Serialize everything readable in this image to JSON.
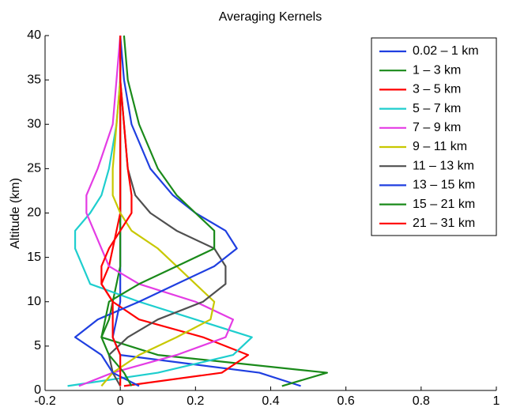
{
  "chart_data": {
    "type": "line",
    "title": "Averaging Kernels",
    "ylabel": "Altitude (km)",
    "y": [
      0.5,
      2,
      4,
      6,
      8,
      10,
      12,
      14,
      16,
      18,
      20,
      22,
      25,
      30,
      35,
      40
    ],
    "series": [
      {
        "name": "0.02 – 1 km",
        "color": "#1f3fe0",
        "values": [
          0.48,
          0.37,
          0.0,
          -0.02,
          -0.01,
          0,
          0,
          0,
          0,
          0,
          0,
          0,
          0,
          0,
          0,
          0
        ]
      },
      {
        "name": "1 – 3 km",
        "color": "#1a8a1a",
        "values": [
          0.43,
          0.55,
          0.1,
          -0.05,
          -0.03,
          -0.02,
          -0.01,
          0,
          0,
          0,
          0,
          0,
          0,
          0,
          0,
          0
        ]
      },
      {
        "name": "3 – 5 km",
        "color": "#ff0000",
        "values": [
          0.01,
          0.27,
          0.34,
          0.22,
          0.05,
          -0.02,
          -0.05,
          -0.03,
          -0.02,
          -0.01,
          0,
          0,
          0,
          0,
          0,
          0
        ]
      },
      {
        "name": "5 – 7 km",
        "color": "#1ecece",
        "values": [
          -0.14,
          0.1,
          0.3,
          0.35,
          0.2,
          0.05,
          -0.08,
          -0.1,
          -0.12,
          -0.12,
          -0.08,
          -0.05,
          -0.03,
          -0.01,
          0,
          0
        ]
      },
      {
        "name": "7 – 9 km",
        "color": "#e43ce4",
        "values": [
          -0.11,
          -0.02,
          0.15,
          0.28,
          0.3,
          0.2,
          0.05,
          -0.03,
          -0.05,
          -0.07,
          -0.09,
          -0.09,
          -0.06,
          -0.02,
          -0.01,
          0
        ]
      },
      {
        "name": "9 – 11 km",
        "color": "#c8c800",
        "values": [
          -0.05,
          -0.02,
          0.05,
          0.15,
          0.24,
          0.25,
          0.2,
          0.15,
          0.1,
          0.03,
          0,
          -0.02,
          -0.02,
          -0.01,
          0,
          0
        ]
      },
      {
        "name": "11 – 13 km",
        "color": "#505050",
        "values": [
          0.0,
          -0.02,
          -0.03,
          0.02,
          0.1,
          0.22,
          0.28,
          0.28,
          0.25,
          0.15,
          0.08,
          0.04,
          0.02,
          0.01,
          0,
          0
        ]
      },
      {
        "name": "13 – 15 km",
        "color": "#1f3fe0",
        "values": [
          0.05,
          -0.02,
          -0.05,
          -0.12,
          -0.06,
          0.05,
          0.15,
          0.25,
          0.31,
          0.28,
          0.2,
          0.14,
          0.08,
          0.03,
          0.01,
          0
        ]
      },
      {
        "name": "15 – 21 km",
        "color": "#1a8a1a",
        "values": [
          0.03,
          0.01,
          -0.03,
          -0.05,
          -0.04,
          -0.03,
          0.05,
          0.15,
          0.25,
          0.25,
          0.2,
          0.15,
          0.1,
          0.05,
          0.02,
          0.01
        ]
      },
      {
        "name": "21 – 31 km",
        "color": "#ff0000",
        "values": [
          0,
          0,
          0,
          -0.02,
          -0.02,
          -0.02,
          -0.05,
          -0.05,
          -0.03,
          0,
          0.03,
          0.03,
          0.02,
          0.01,
          0,
          0
        ]
      }
    ],
    "xlim": [
      -0.2,
      1
    ],
    "xticks": [
      -0.2,
      0,
      0.2,
      0.4,
      0.6,
      0.8,
      1
    ],
    "ylim": [
      0,
      40
    ],
    "yticks": [
      0,
      5,
      10,
      15,
      20,
      25,
      30,
      35,
      40
    ],
    "legend": "upper right"
  }
}
